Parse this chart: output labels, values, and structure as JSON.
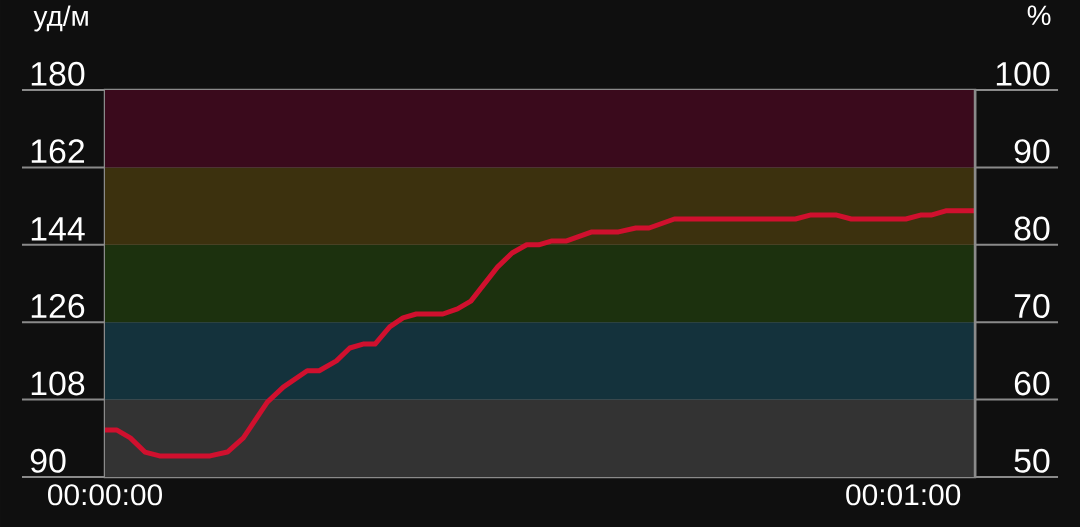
{
  "chart_data": {
    "type": "line",
    "ylabel": "уд/м",
    "y2label": "%",
    "x": [
      0,
      0.9,
      1.9,
      3.0,
      4.1,
      7.9,
      9.2,
      10.4,
      12.2,
      13.4,
      15.2,
      16.1,
      17.4,
      18.4,
      19.4,
      20.3,
      21.4,
      22.4,
      23.4,
      25.4,
      26.5,
      27.5,
      29.5,
      30.6,
      31.7,
      32.6,
      33.6,
      34.7,
      36.6,
      38.6,
      39.9,
      40.9,
      42.8,
      51.9,
      53.0,
      55.0,
      56.1,
      60.2,
      61.3,
      62.1,
      63.2,
      65.4
    ],
    "series": [
      {
        "color": "#d0102e",
        "values": [
          100.9,
          100.9,
          99.1,
          95.8,
          94.9,
          94.9,
          95.8,
          99.1,
          107.4,
          110.9,
          114.7,
          114.7,
          117.0,
          120.0,
          120.9,
          120.9,
          124.9,
          127.0,
          127.9,
          127.9,
          129.1,
          130.9,
          138.8,
          142.1,
          144.0,
          144.0,
          144.9,
          144.9,
          147.0,
          147.0,
          147.9,
          147.9,
          150.0,
          150.0,
          150.9,
          150.9,
          150.0,
          150.0,
          150.9,
          150.9,
          151.9,
          151.9
        ]
      }
    ],
    "xlim": [
      0,
      65.4
    ],
    "xticks": [
      {
        "value": 0,
        "label": "00:00:00"
      },
      {
        "value": 60,
        "label": "00:01:00"
      }
    ],
    "ylim": [
      90,
      180
    ],
    "yticks": [
      90,
      108,
      126,
      144,
      162,
      180
    ],
    "y2lim": [
      50,
      100
    ],
    "y2ticks": [
      50,
      60,
      70,
      80,
      90,
      100
    ],
    "bands": [
      {
        "axis": "y",
        "from": 90,
        "to": 108,
        "color": "#333333"
      },
      {
        "axis": "y",
        "from": 108,
        "to": 126,
        "color": "#14323c"
      },
      {
        "axis": "y",
        "from": 126,
        "to": 144,
        "color": "#1c310e"
      },
      {
        "axis": "y",
        "from": 144,
        "to": 162,
        "color": "#3c310e"
      },
      {
        "axis": "y",
        "from": 162,
        "to": 180,
        "color": "#3a0a1c"
      }
    ],
    "grid": "y",
    "marker": "none",
    "line_style": "solid"
  }
}
